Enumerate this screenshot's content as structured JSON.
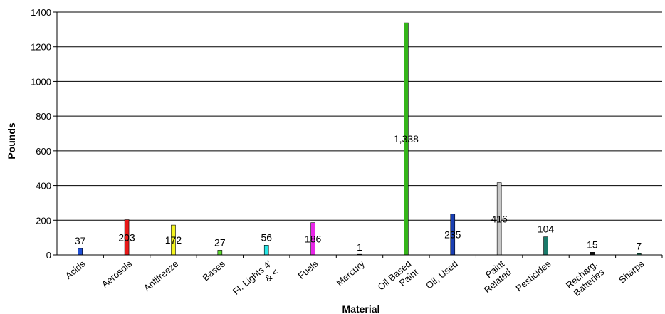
{
  "chart_data": {
    "type": "bar",
    "title": "",
    "xlabel": "Material",
    "ylabel": "Pounds",
    "ylim": [
      0,
      1400
    ],
    "yticks": [
      0,
      200,
      400,
      600,
      800,
      1000,
      1200,
      1400
    ],
    "ytick_labels": [
      "0",
      "200",
      "400",
      "600",
      "800",
      "1000",
      "1200",
      "1400"
    ],
    "grid": true,
    "legend": "none",
    "categories": [
      {
        "label": "Acids",
        "lines": [
          "Acids"
        ]
      },
      {
        "label": "Aerosols",
        "lines": [
          "Aerosols"
        ]
      },
      {
        "label": "Antifreeze",
        "lines": [
          "Antifreeze"
        ]
      },
      {
        "label": "Bases",
        "lines": [
          "Bases"
        ]
      },
      {
        "label": "Fl. Lights 4' & <",
        "lines": [
          "Fl. Lights 4'",
          "& <"
        ]
      },
      {
        "label": "Fuels",
        "lines": [
          "Fuels"
        ]
      },
      {
        "label": "Mercury",
        "lines": [
          "Mercury"
        ]
      },
      {
        "label": "Oil Based Paint",
        "lines": [
          "Oil Based",
          "Paint"
        ]
      },
      {
        "label": "Oil, Used",
        "lines": [
          "Oil, Used"
        ]
      },
      {
        "label": "Paint Related",
        "lines": [
          "Paint",
          "Related"
        ]
      },
      {
        "label": "Pesticides",
        "lines": [
          "Pesticides"
        ]
      },
      {
        "label": "Recharg. Batteries",
        "lines": [
          "Recharg.",
          "Batteries"
        ]
      },
      {
        "label": "Sharps",
        "lines": [
          "Sharps"
        ]
      }
    ],
    "values": [
      37,
      203,
      172,
      27,
      56,
      186,
      1,
      1338,
      235,
      416,
      104,
      15,
      7
    ],
    "data_labels": [
      "37",
      "203",
      "172",
      "27",
      "56",
      "186",
      "1",
      "1,338",
      "235",
      "416",
      "104",
      "15",
      "7"
    ],
    "colors": [
      "#1f4fd6",
      "#e81818",
      "#f4f41e",
      "#5ddc2e",
      "#27e6e6",
      "#e826e8",
      "#909090",
      "#35b51a",
      "#1a3fb3",
      "#c8c8c8",
      "#1a7a6a",
      "#111111",
      "#2a8a6a"
    ]
  }
}
